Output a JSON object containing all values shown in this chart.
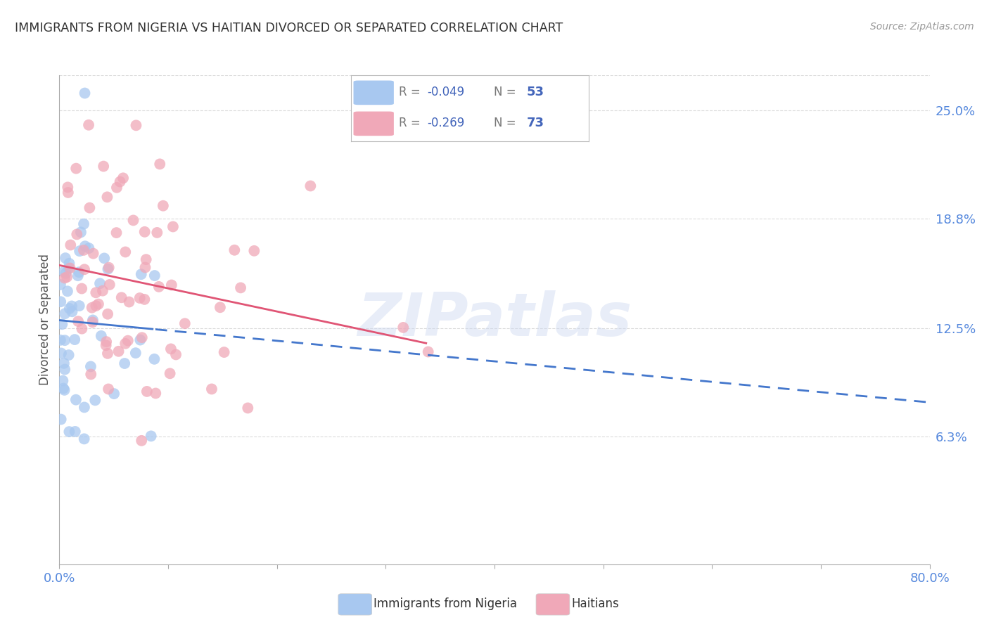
{
  "title": "IMMIGRANTS FROM NIGERIA VS HAITIAN DIVORCED OR SEPARATED CORRELATION CHART",
  "source": "Source: ZipAtlas.com",
  "ylabel": "Divorced or Separated",
  "ytick_values": [
    0.0,
    0.063,
    0.125,
    0.188,
    0.25
  ],
  "ytick_labels": [
    "",
    "6.3%",
    "12.5%",
    "18.8%",
    "25.0%"
  ],
  "xlim": [
    0.0,
    0.8
  ],
  "ylim": [
    -0.01,
    0.27
  ],
  "nigeria_color": "#a8c8f0",
  "haitian_color": "#f0a8b8",
  "nigeria_line_color": "#4477cc",
  "haitian_line_color": "#e05575",
  "nigeria_R": -0.049,
  "nigeria_N": 53,
  "haitian_R": -0.269,
  "haitian_N": 73,
  "nigeria_seed": 42,
  "haitian_seed": 123,
  "watermark": "ZIPatlas",
  "bg_color": "#ffffff",
  "grid_color": "#cccccc",
  "axis_label_color": "#5588dd",
  "title_color": "#333333",
  "legend_text_color": "#4466bb",
  "legend_r_color": "#4466bb",
  "legend_n_color": "#4466bb"
}
